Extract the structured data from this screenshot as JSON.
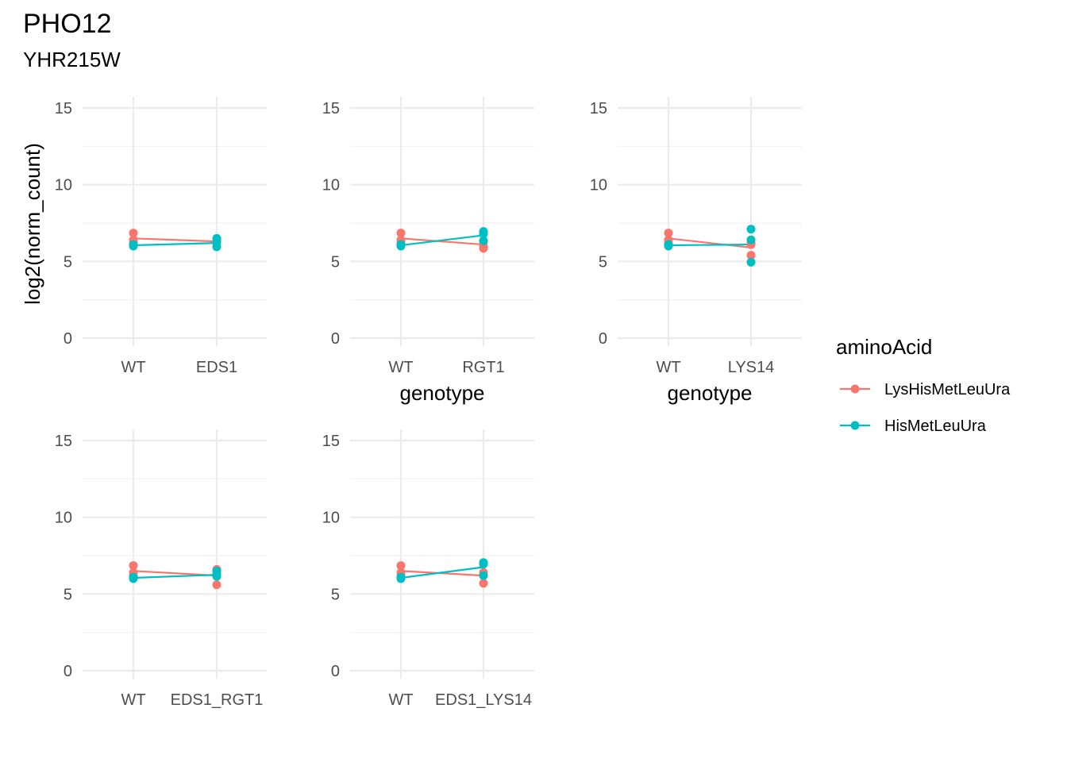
{
  "title": "PHO12",
  "subtitle": "YHR215W",
  "chart_data": {
    "type": "line",
    "ylabel": "log2(norm_count)",
    "xlabel": "genotype",
    "ylim": [
      0,
      15
    ],
    "yticks": [
      0,
      5,
      10,
      15
    ],
    "grid": true,
    "legend": {
      "title": "aminoAcid",
      "position": "right",
      "entries": [
        {
          "name": "LysHisMetLeuUra",
          "color": "#F8766D"
        },
        {
          "name": "HisMetLeuUra",
          "color": "#00BFC4"
        }
      ]
    },
    "panels": [
      {
        "categories": [
          "WT",
          "EDS1"
        ],
        "series": [
          {
            "name": "LysHisMetLeuUra",
            "color": "#F8766D",
            "means": [
              6.5,
              6.3
            ],
            "points": [
              [
                6.85,
                6.4,
                6.2
              ],
              [
                6.4,
                6.3,
                6.2
              ]
            ]
          },
          {
            "name": "HisMetLeuUra",
            "color": "#00BFC4",
            "means": [
              6.05,
              6.2
            ],
            "points": [
              [
                6.1,
                6.0,
                6.05
              ],
              [
                6.5,
                6.2,
                5.95
              ]
            ]
          }
        ]
      },
      {
        "categories": [
          "WT",
          "RGT1"
        ],
        "series": [
          {
            "name": "LysHisMetLeuUra",
            "color": "#F8766D",
            "means": [
              6.5,
              6.1
            ],
            "points": [
              [
                6.85,
                6.4,
                6.2
              ],
              [
                6.3,
                6.0,
                5.85
              ]
            ]
          },
          {
            "name": "HisMetLeuUra",
            "color": "#00BFC4",
            "means": [
              6.05,
              6.7
            ],
            "points": [
              [
                6.1,
                6.0,
                6.05
              ],
              [
                6.95,
                6.8,
                6.35
              ]
            ]
          }
        ]
      },
      {
        "categories": [
          "WT",
          "LYS14"
        ],
        "series": [
          {
            "name": "LysHisMetLeuUra",
            "color": "#F8766D",
            "means": [
              6.5,
              5.9
            ],
            "points": [
              [
                6.85,
                6.4,
                6.2
              ],
              [
                6.2,
                6.1,
                5.4
              ]
            ]
          },
          {
            "name": "HisMetLeuUra",
            "color": "#00BFC4",
            "means": [
              6.05,
              6.1
            ],
            "points": [
              [
                6.1,
                6.0,
                6.05
              ],
              [
                7.1,
                6.4,
                4.95
              ]
            ]
          }
        ]
      },
      {
        "categories": [
          "WT",
          "EDS1_RGT1"
        ],
        "series": [
          {
            "name": "LysHisMetLeuUra",
            "color": "#F8766D",
            "means": [
              6.5,
              6.2
            ],
            "points": [
              [
                6.85,
                6.4,
                6.2
              ],
              [
                6.6,
                6.3,
                5.6
              ]
            ]
          },
          {
            "name": "HisMetLeuUra",
            "color": "#00BFC4",
            "means": [
              6.05,
              6.25
            ],
            "points": [
              [
                6.1,
                6.0,
                6.05
              ],
              [
                6.5,
                6.3,
                6.15
              ]
            ]
          }
        ]
      },
      {
        "categories": [
          "WT",
          "EDS1_LYS14"
        ],
        "series": [
          {
            "name": "LysHisMetLeuUra",
            "color": "#F8766D",
            "means": [
              6.5,
              6.2
            ],
            "points": [
              [
                6.85,
                6.4,
                6.2
              ],
              [
                6.4,
                6.2,
                5.7
              ]
            ]
          },
          {
            "name": "HisMetLeuUra",
            "color": "#00BFC4",
            "means": [
              6.05,
              6.75
            ],
            "points": [
              [
                6.1,
                6.0,
                6.05
              ],
              [
                7.05,
                6.95,
                6.2
              ]
            ]
          }
        ]
      }
    ]
  }
}
